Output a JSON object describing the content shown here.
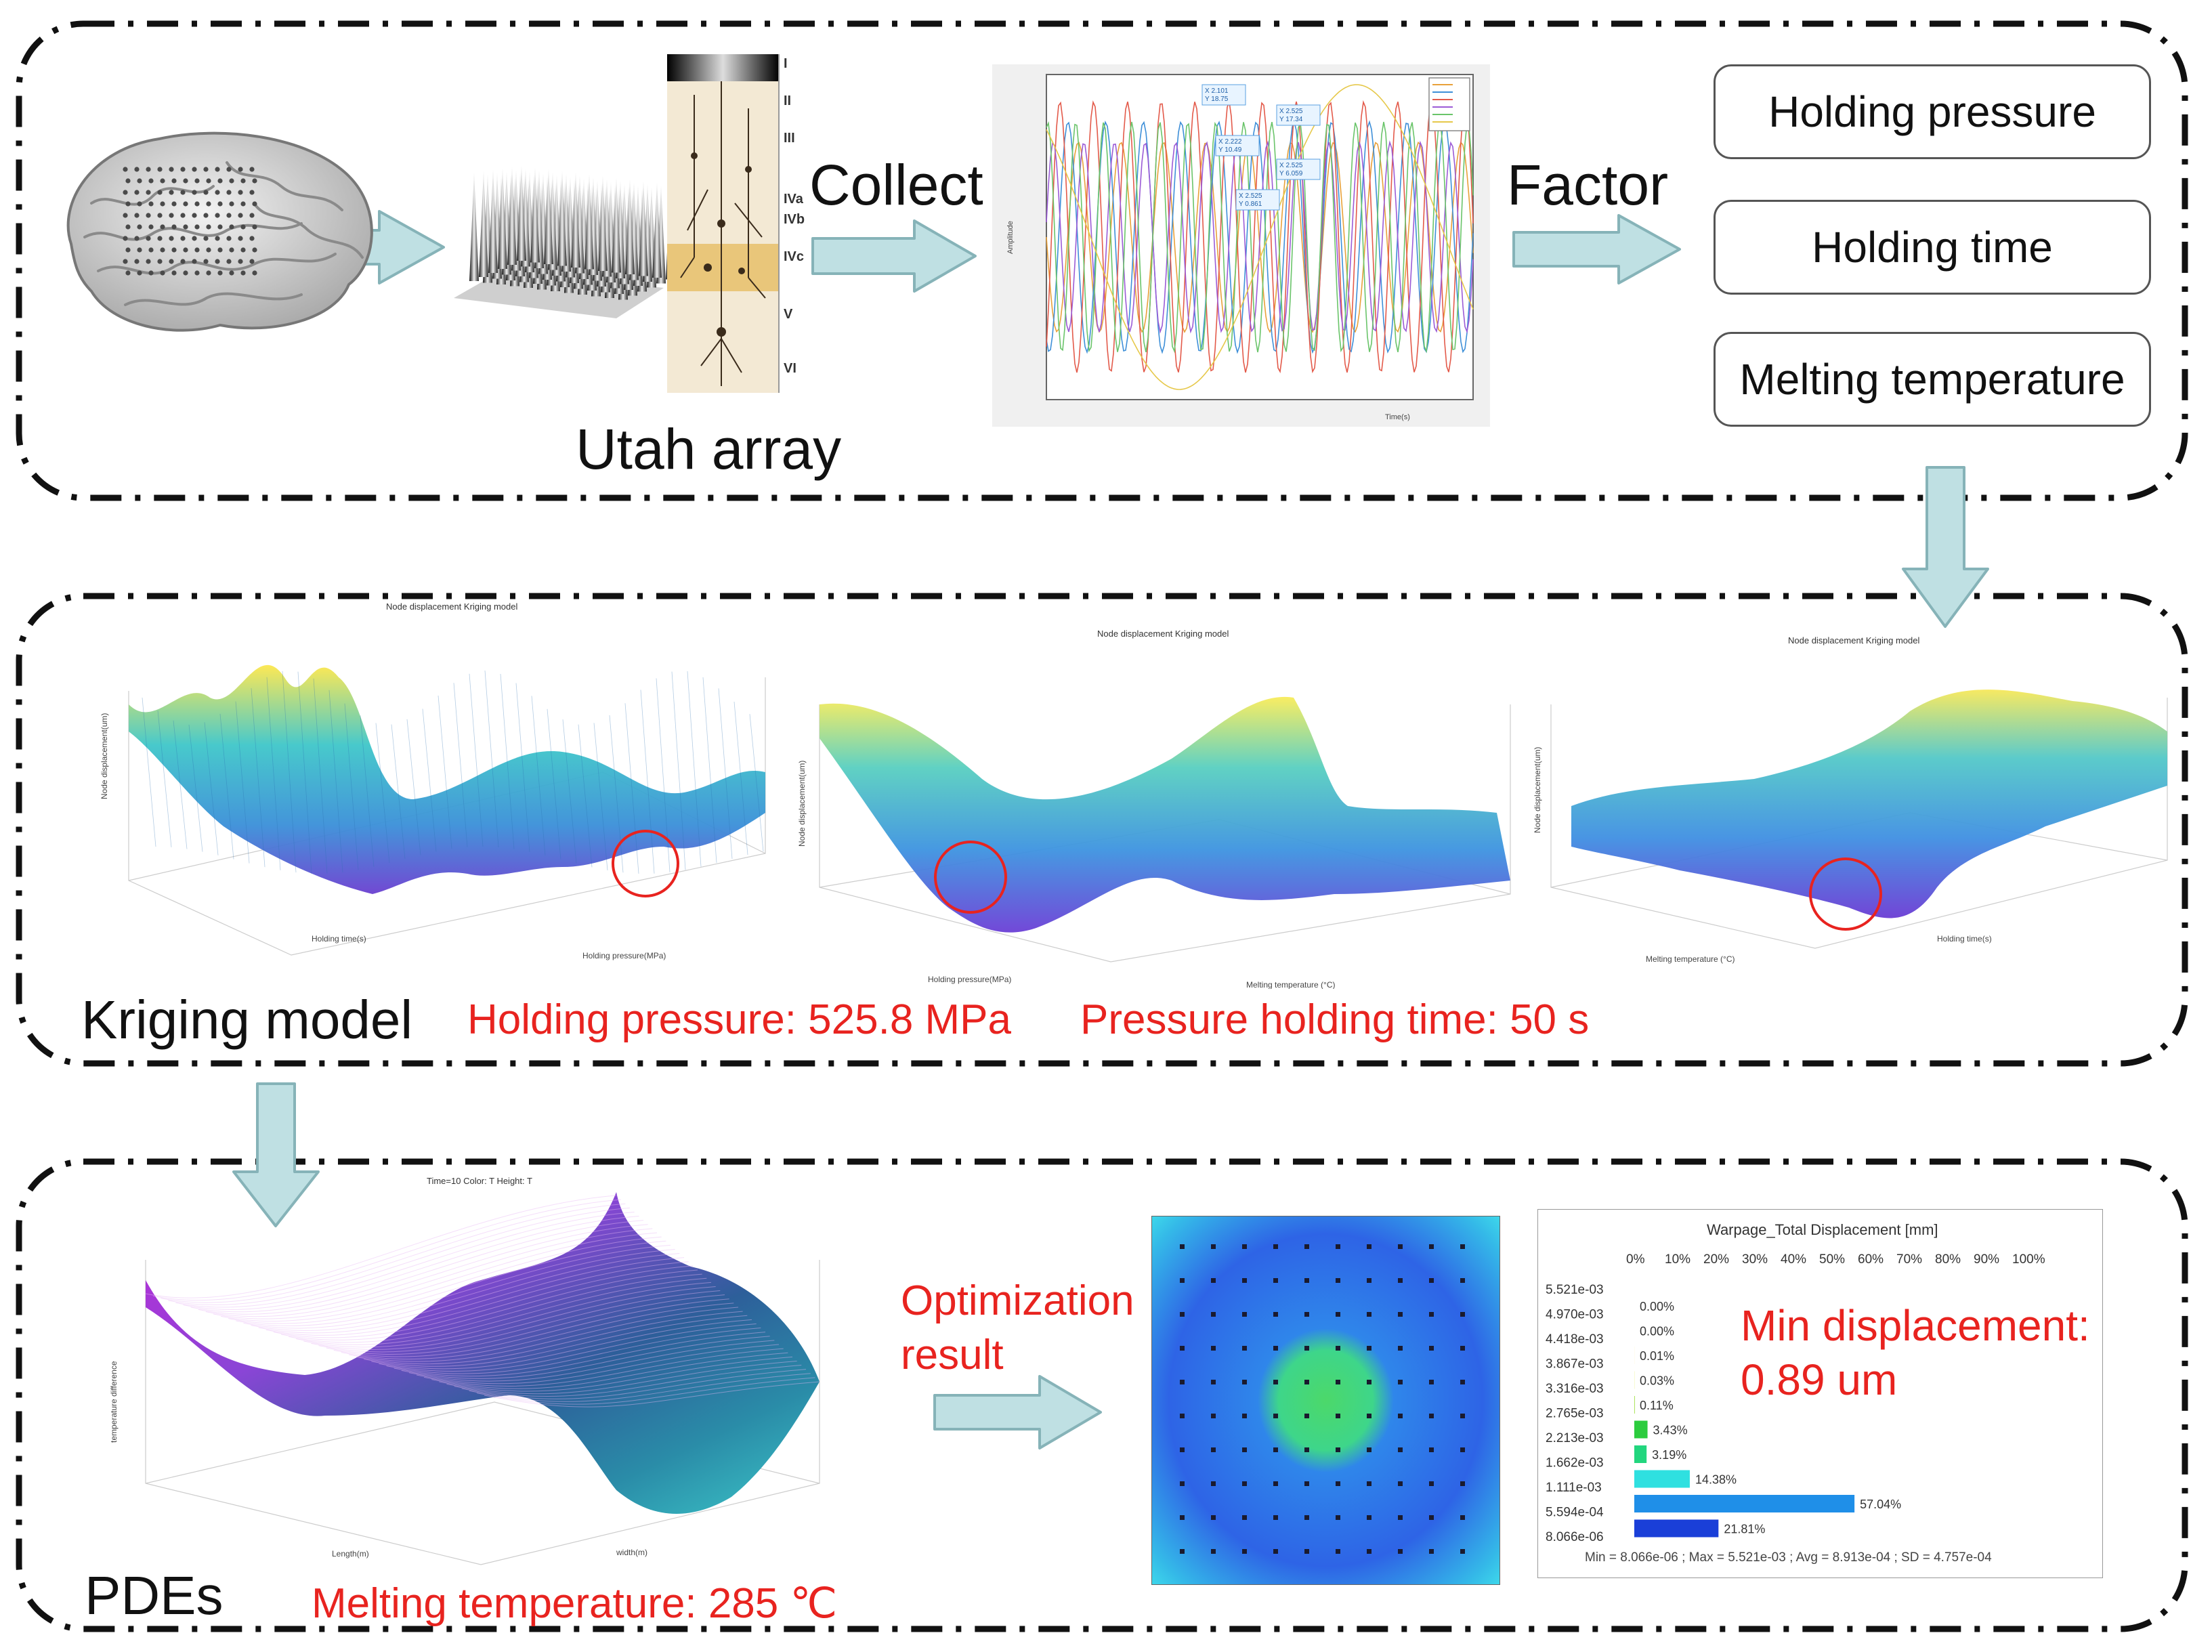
{
  "colors": {
    "arrow_fill": "#bfe0e3",
    "arrow_stroke": "#86b3b8",
    "highlight": "#e8231f",
    "frame": "#111111"
  },
  "top": {
    "collect_label": "Collect",
    "factor_label": "Factor",
    "utah_label": "Utah array",
    "cortex_layers": [
      "I",
      "II",
      "III",
      "IVa",
      "IVb",
      "IVc",
      "V",
      "VI"
    ],
    "signal_plot": {
      "xlabel": "Time(s)",
      "ylabel": "Amplitude",
      "datatips": [
        "X 2.101\nY 18.75",
        "X 2.525\nY 17.34",
        "X 2.222\nY 10.49",
        "X 2.525\nY 6.059",
        "X 2.525\nY 0.861"
      ]
    },
    "factors": [
      "Holding pressure",
      "Holding time",
      "Melting temperature"
    ]
  },
  "middle": {
    "section_label": "Kriging model",
    "result_pressure": "Holding pressure: 525.8 MPa",
    "result_time": "Pressure holding time: 50 s",
    "surface_title": "Node displacement Kriging model",
    "plot1": {
      "xlabel": "Holding time(s)",
      "ylabel": "Node displacement(um)",
      "zlabel": "Holding pressure(MPa)"
    },
    "plot2": {
      "xlabel": "Holding pressure(MPa)",
      "ylabel": "Node displacement(um)",
      "zlabel": "Melting temperature (°C)"
    },
    "plot3": {
      "xlabel": "Melting temperature (°C)",
      "ylabel": "Node displacement(um)",
      "zlabel": "Holding time(s)"
    }
  },
  "bottom": {
    "section_label": "PDEs",
    "melting_result": "Melting temperature: 285 ℃",
    "pde_plot": {
      "title": "Time=10  Color: T  Height: T",
      "xlabel": "Length(m)",
      "ylabel": "width(m)",
      "zlabel": "temperature difference"
    },
    "optimization_label_line1": "Optimization",
    "optimization_label_line2": "result",
    "min_disp_line1": "Min displacement:",
    "min_disp_line2": "0.89 um",
    "warpage": {
      "title": "Warpage_Total Displacement [mm]",
      "percent_ticks": [
        "0%",
        "10%",
        "20%",
        "30%",
        "40%",
        "50%",
        "60%",
        "70%",
        "80%",
        "90%",
        "100%"
      ],
      "levels": [
        "5.521e-03",
        "4.970e-03",
        "4.418e-03",
        "3.867e-03",
        "3.316e-03",
        "2.765e-03",
        "2.213e-03",
        "1.662e-03",
        "1.111e-03",
        "5.594e-04",
        "8.066e-06"
      ],
      "stats": "Min = 8.066e-06 ;  Max = 5.521e-03 ;  Avg = 8.913e-04 ;  SD = 4.757e-04"
    }
  },
  "chart_data": {
    "type": "bar",
    "title": "Warpage_Total Displacement [mm]",
    "categories": [
      "5.521e-03 – 4.970e-03",
      "4.970e-03 – 4.418e-03",
      "4.418e-03 – 3.867e-03",
      "3.867e-03 – 3.316e-03",
      "3.316e-03 – 2.765e-03",
      "2.765e-03 – 2.213e-03",
      "2.213e-03 – 1.662e-03",
      "1.662e-03 – 1.111e-03",
      "1.111e-03 – 5.594e-04",
      "5.594e-04 – 8.066e-06"
    ],
    "values": [
      0.0,
      0.0,
      0.01,
      0.03,
      0.11,
      3.43,
      3.19,
      14.38,
      57.04,
      21.81
    ],
    "value_labels": [
      "0.00%",
      "0.00%",
      "0.01%",
      "0.03%",
      "0.11%",
      "3.43%",
      "3.19%",
      "14.38%",
      "57.04%",
      "21.81%"
    ],
    "bar_colors": [
      "#d62728",
      "#ff7f0e",
      "#ffbf00",
      "#d4e000",
      "#7fd400",
      "#2ccc3e",
      "#22d67e",
      "#2fe0e0",
      "#1f8fe8",
      "#1a3fd8"
    ],
    "xlim": [
      0,
      100
    ],
    "orientation": "horizontal"
  }
}
